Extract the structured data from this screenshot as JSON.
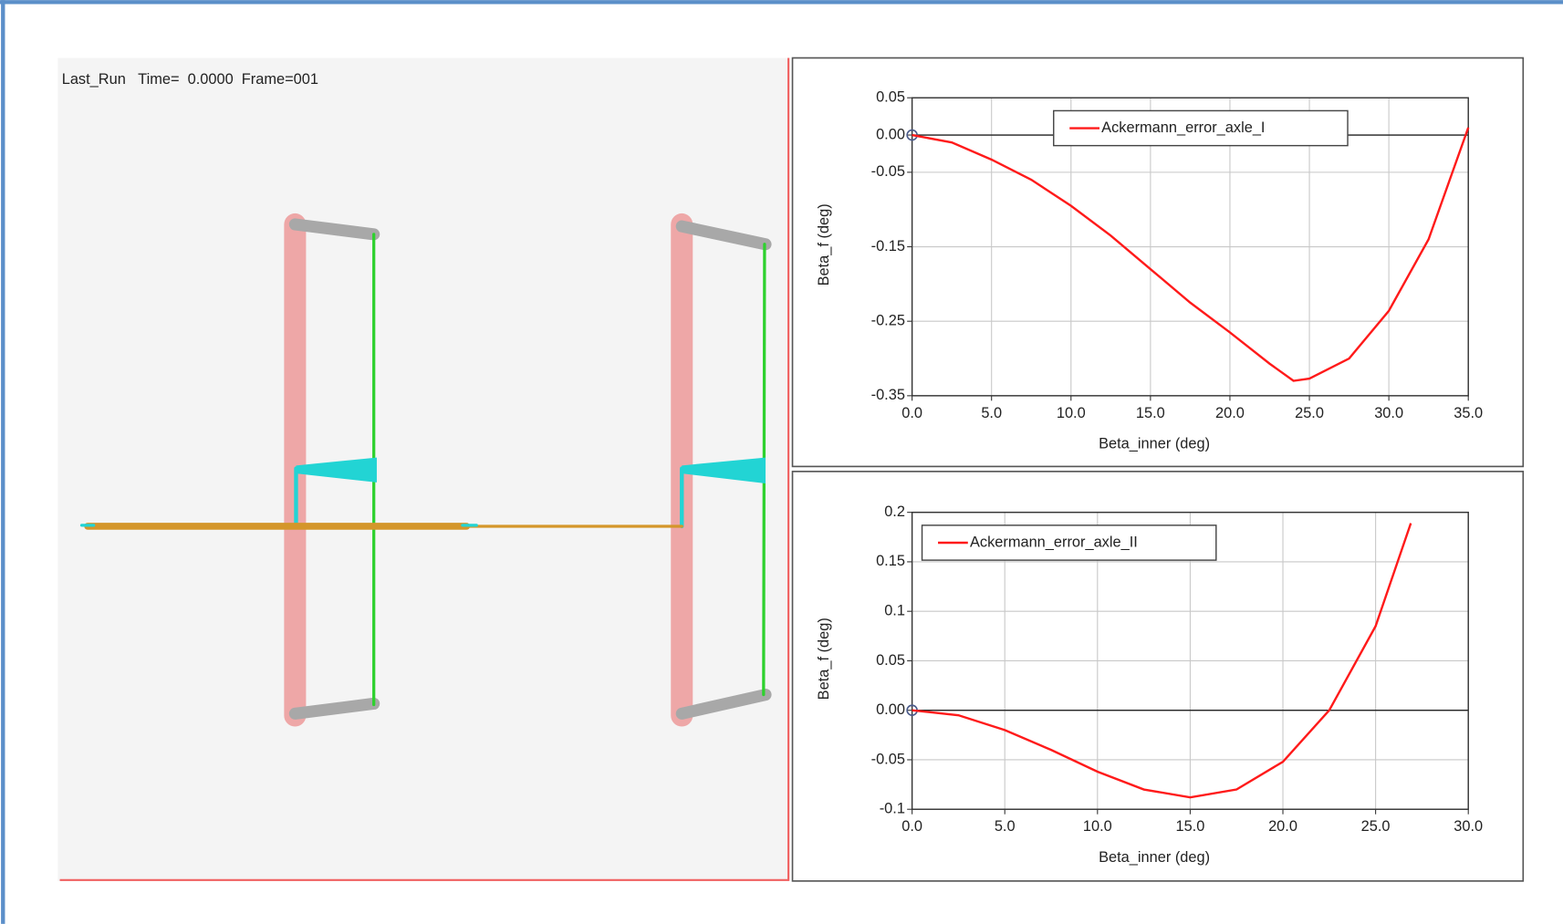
{
  "viewport": {
    "label": "Last_Run   Time=  0.0000  Frame=001"
  },
  "chart_data": [
    {
      "type": "line",
      "xlabel": "Beta_inner (deg)",
      "ylabel": "Beta_f (deg)",
      "x": [
        0,
        2.5,
        5,
        7.5,
        10,
        12.5,
        15,
        17.5,
        20,
        22.5,
        24,
        25,
        27.5,
        30,
        32.5,
        35
      ],
      "series": [
        {
          "name": "Ackermann_error_axle_I",
          "color": "#ff1a1a",
          "values": [
            0,
            -0.01,
            -0.033,
            -0.06,
            -0.095,
            -0.135,
            -0.18,
            -0.225,
            -0.265,
            -0.307,
            -0.33,
            -0.327,
            -0.3,
            -0.236,
            -0.14,
            0.01
          ]
        }
      ],
      "xlim": [
        0,
        35
      ],
      "xticks": [
        {
          "value": 0,
          "label": "0.0"
        },
        {
          "value": 5,
          "label": "5.0"
        },
        {
          "value": 10,
          "label": "10.0"
        },
        {
          "value": 15,
          "label": "15.0"
        },
        {
          "value": 20,
          "label": "20.0"
        },
        {
          "value": 25,
          "label": "25.0"
        },
        {
          "value": 30,
          "label": "30.0"
        },
        {
          "value": 35,
          "label": "35.0"
        }
      ],
      "ylim": [
        -0.35,
        0.05
      ],
      "yticks": [
        0.05,
        {
          "value": 0,
          "label": "0.00"
        },
        -0.05,
        -0.15,
        -0.25,
        -0.35
      ],
      "grid": true,
      "legend": "upper center"
    },
    {
      "type": "line",
      "xlabel": "Beta_inner (deg)",
      "ylabel": "Beta_f (deg)",
      "x": [
        0,
        2.5,
        5,
        7.5,
        10,
        12.5,
        15,
        17.5,
        20,
        22.5,
        25,
        26.9
      ],
      "series": [
        {
          "name": "Ackermann_error_axle_II",
          "color": "#ff1a1a",
          "values": [
            0,
            -0.005,
            -0.02,
            -0.04,
            -0.062,
            -0.08,
            -0.088,
            -0.08,
            -0.052,
            0,
            0.085,
            0.189
          ]
        }
      ],
      "xlim": [
        0,
        30
      ],
      "xticks": [
        {
          "value": 0,
          "label": "0.0"
        },
        {
          "value": 5,
          "label": "5.0"
        },
        {
          "value": 10,
          "label": "10.0"
        },
        {
          "value": 15,
          "label": "15.0"
        },
        {
          "value": 20,
          "label": "20.0"
        },
        {
          "value": 25,
          "label": "25.0"
        },
        {
          "value": 30,
          "label": "30.0"
        }
      ],
      "ylim": [
        -0.1,
        0.2
      ],
      "yticks": [
        0.2,
        0.15,
        0.1,
        0.05,
        {
          "value": 0,
          "label": "0.00"
        },
        -0.05,
        -0.1
      ],
      "grid": true,
      "legend": "upper left"
    }
  ]
}
